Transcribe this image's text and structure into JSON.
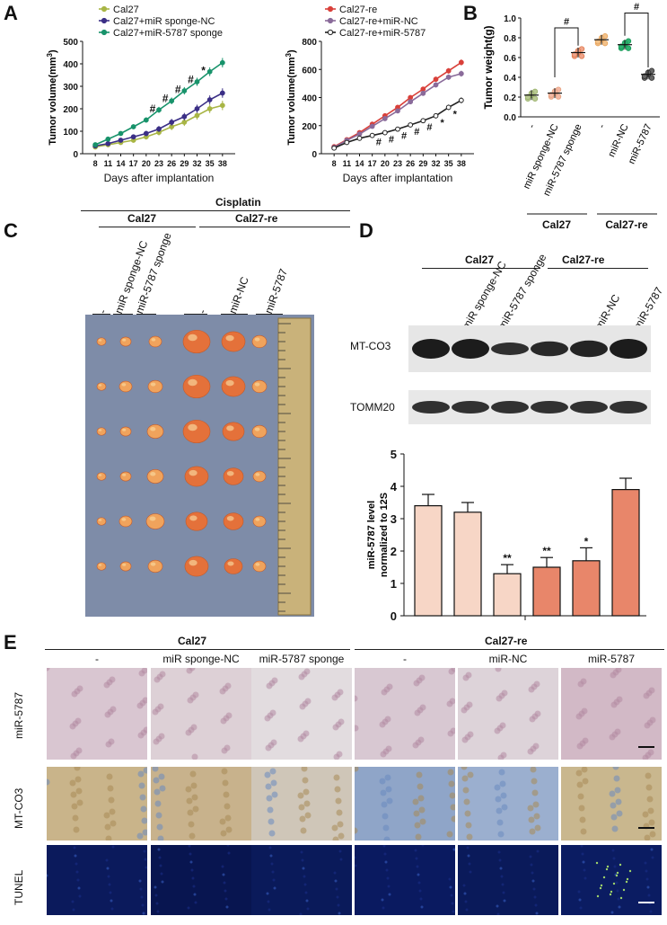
{
  "panels": {
    "a": "A",
    "b": "B",
    "c": "C",
    "d": "D",
    "e": "E"
  },
  "colors": {
    "cal27": "#a8b545",
    "sponge_nc": "#3b2f86",
    "sponge": "#18936b",
    "re": "#d9403a",
    "re_nc": "#8a6b9a",
    "re_5787": "#222222",
    "bar_light": "#f7d6c6",
    "bar_dark": "#e8866a"
  },
  "chart_data": [
    {
      "type": "line",
      "xlabel": "Days after implantation",
      "ylabel": "Tumor volume(mm³)",
      "ylabel_base": "Tumor volume(mm",
      "ylabel_sup": "3",
      "ylabel_tail": ")",
      "x": [
        8,
        11,
        14,
        17,
        20,
        23,
        26,
        29,
        32,
        35,
        38
      ],
      "ylim": [
        0,
        500
      ],
      "yticks": [
        0,
        100,
        200,
        300,
        400,
        500
      ],
      "series": [
        {
          "name": "Cal27",
          "color": "#a8b545",
          "values": [
            30,
            40,
            50,
            60,
            75,
            95,
            120,
            140,
            170,
            200,
            215
          ]
        },
        {
          "name": "Cal27+miR sponge-NC",
          "color": "#3b2f86",
          "values": [
            35,
            45,
            60,
            75,
            90,
            110,
            140,
            165,
            200,
            240,
            270
          ]
        },
        {
          "name": "Cal27+miR-5787 sponge",
          "color": "#18936b",
          "values": [
            40,
            65,
            90,
            120,
            150,
            195,
            235,
            280,
            320,
            365,
            405
          ]
        }
      ],
      "annotations": [
        "#",
        "#",
        "#",
        "#",
        "*"
      ]
    },
    {
      "type": "line",
      "xlabel": "Days after implantation",
      "ylabel": "Tumor volume(mm³)",
      "ylabel_base": "Tumor volume(mm",
      "ylabel_sup": "3",
      "ylabel_tail": ")",
      "x": [
        8,
        11,
        14,
        17,
        20,
        23,
        26,
        29,
        32,
        35,
        38
      ],
      "ylim": [
        0,
        800
      ],
      "yticks": [
        0,
        200,
        400,
        600,
        800
      ],
      "series": [
        {
          "name": "Cal27-re",
          "color": "#d9403a",
          "values": [
            50,
            100,
            150,
            210,
            270,
            330,
            400,
            460,
            530,
            590,
            650
          ]
        },
        {
          "name": "Cal27-re+miR-NC",
          "color": "#8a6b9a",
          "values": [
            45,
            95,
            140,
            195,
            250,
            305,
            370,
            430,
            490,
            545,
            570
          ]
        },
        {
          "name": "Cal27-re+miR-5787",
          "color": "#222222",
          "values": [
            40,
            80,
            110,
            130,
            150,
            175,
            205,
            235,
            270,
            330,
            380
          ]
        }
      ],
      "annotations": [
        "#",
        "#",
        "#",
        "#",
        "#",
        "*",
        "*"
      ]
    },
    {
      "type": "scatter",
      "ylabel": "Tumor weight(g)",
      "ylim": [
        0,
        1.0
      ],
      "yticks": [
        0.0,
        0.2,
        0.4,
        0.6,
        0.8,
        1.0
      ],
      "categories": [
        "-",
        "miR sponge-NC",
        "miR-5787 sponge",
        "-",
        "miR-NC",
        "miR-5787"
      ],
      "values": [
        0.22,
        0.24,
        0.65,
        0.78,
        0.73,
        0.43
      ],
      "groups": [
        "Cal27",
        "Cal27-re"
      ],
      "annotations": [
        "#",
        "#"
      ]
    },
    {
      "type": "bar",
      "ylabel": "miR-5787 level normalized to 12S",
      "ylabel_1": "miR-5787 level",
      "ylabel_2": "normalized to 12S",
      "ylim": [
        0,
        5
      ],
      "yticks": [
        0,
        1,
        2,
        3,
        4,
        5
      ],
      "values": [
        3.4,
        3.2,
        1.3,
        1.5,
        1.7,
        3.9
      ],
      "errors": [
        0.35,
        0.3,
        0.28,
        0.3,
        0.4,
        0.35
      ],
      "sig": [
        "",
        "",
        "**",
        "**",
        "*",
        ""
      ]
    }
  ],
  "panel_c": {
    "treatment": "Cisplatin",
    "groups": [
      "Cal27",
      "Cal27-re"
    ],
    "cols": [
      "-",
      "miR sponge-NC",
      "miR-5787 sponge",
      "-",
      "miR-NC",
      "miR-5787"
    ]
  },
  "panel_d": {
    "groups": [
      "Cal27",
      "Cal27-re"
    ],
    "cols": [
      "-",
      "miR sponge-NC",
      "miR-5787 sponge",
      "-",
      "miR-NC",
      "miR-5787"
    ],
    "rows": [
      "MT-CO3",
      "TOMM20"
    ]
  },
  "panel_e": {
    "groups": [
      "Cal27",
      "Cal27-re"
    ],
    "cols": [
      "-",
      "miR sponge-NC",
      "miR-5787 sponge",
      "-",
      "miR-NC",
      "miR-5787"
    ],
    "rows": [
      "miR-5787",
      "MT-CO3",
      "TUNEL"
    ]
  }
}
